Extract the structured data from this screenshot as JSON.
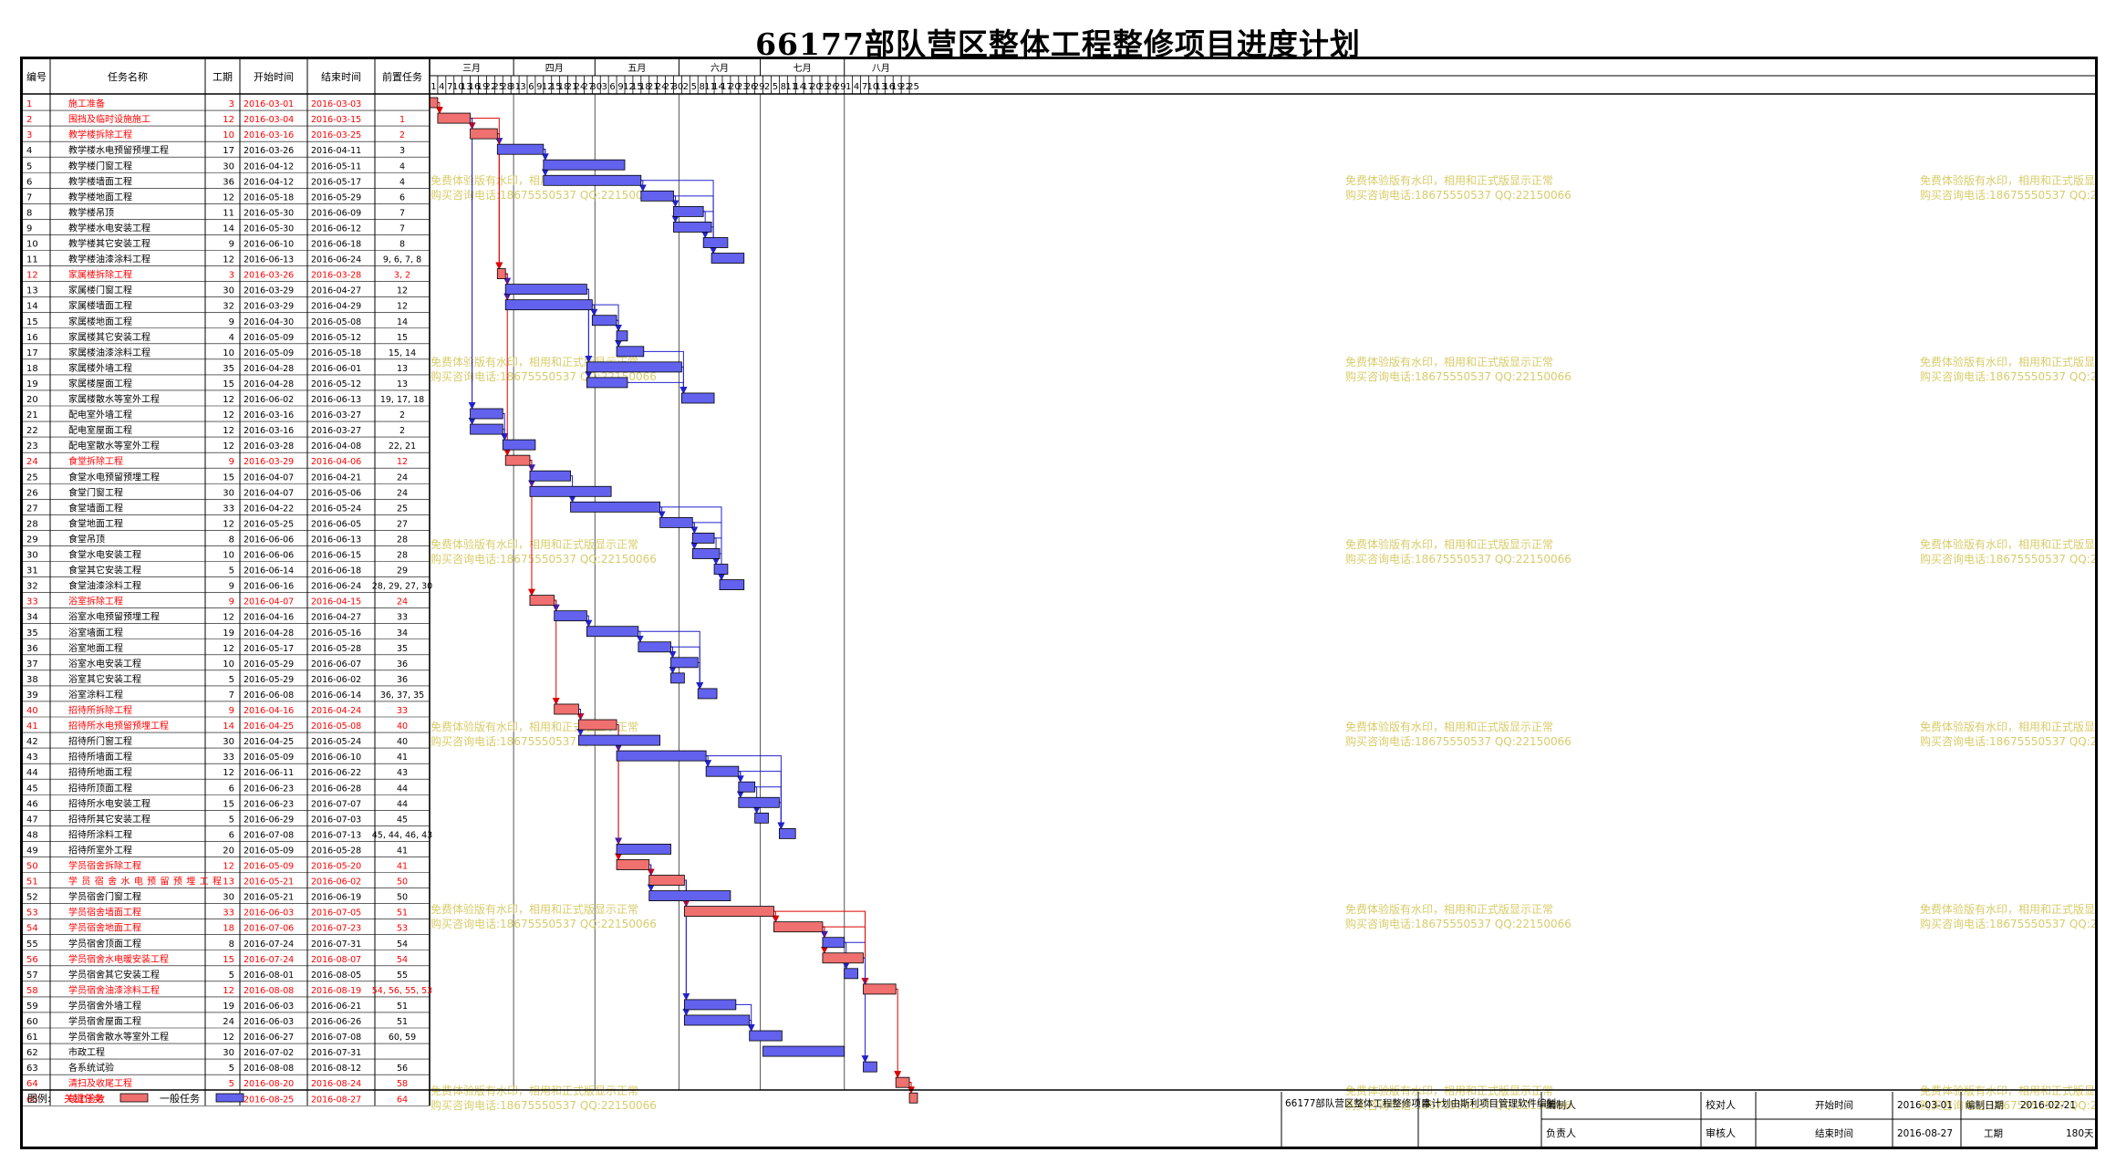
{
  "title": "66177部队营区整体工程整修项目进度计划",
  "colors": {
    "critical": "#f07070",
    "critical_text": "#ff0000",
    "normal": "#6262ee",
    "link_normal": "#2222cc",
    "link_critical": "#dd0000",
    "watermark": "#d8cc6a",
    "grid": "#000000"
  },
  "headers": {
    "id": "编号",
    "name": "任务名称",
    "duration": "工期",
    "start": "开始时间",
    "end": "结束时间",
    "pred": "前置任务"
  },
  "months": [
    {
      "label": "三月",
      "start": "2016-03-01"
    },
    {
      "label": "四月",
      "start": "2016-04-01"
    },
    {
      "label": "五月",
      "start": "2016-05-01"
    },
    {
      "label": "六月",
      "start": "2016-06-01"
    },
    {
      "label": "七月",
      "start": "2016-07-01"
    },
    {
      "label": "八月",
      "start": "2016-08-01"
    }
  ],
  "day_ticks": [
    "1",
    "4",
    "7",
    "10",
    "13",
    "16",
    "19",
    "22",
    "25",
    "28",
    "31",
    "3",
    "6",
    "9",
    "12",
    "15",
    "18",
    "21",
    "24",
    "27",
    "30",
    "3",
    "6",
    "9",
    "12",
    "15",
    "18",
    "21",
    "24",
    "27",
    "30",
    "2",
    "5",
    "8",
    "11",
    "14",
    "17",
    "20",
    "23",
    "26",
    "29",
    "2",
    "5",
    "8",
    "11",
    "14",
    "17",
    "20",
    "23",
    "26",
    "29",
    "1",
    "4",
    "7",
    "10",
    "13",
    "16",
    "19",
    "22",
    "25"
  ],
  "watermark": {
    "line1": "免费体验版有水印，相用和正式版显示正常",
    "line2": "购买咨询电话:18675550537 QQ:22150066"
  },
  "chart_data": {
    "type": "gantt",
    "title": "66177部队营区整体工程整修项目进度计划",
    "x_range": [
      "2016-03-01",
      "2016-08-27"
    ],
    "tasks": [
      {
        "id": "1",
        "name": "施工准备",
        "duration": "3",
        "start": "2016-03-01",
        "end": "2016-03-03",
        "pred": "",
        "critical": true
      },
      {
        "id": "2",
        "name": "围挡及临时设施施工",
        "duration": "12",
        "start": "2016-03-04",
        "end": "2016-03-15",
        "pred": "1",
        "critical": true
      },
      {
        "id": "3",
        "name": "教学楼拆除工程",
        "duration": "10",
        "start": "2016-03-16",
        "end": "2016-03-25",
        "pred": "2",
        "critical": true
      },
      {
        "id": "4",
        "name": "教学楼水电预留预埋工程",
        "duration": "17",
        "start": "2016-03-26",
        "end": "2016-04-11",
        "pred": "3",
        "critical": false
      },
      {
        "id": "5",
        "name": "教学楼门窗工程",
        "duration": "30",
        "start": "2016-04-12",
        "end": "2016-05-11",
        "pred": "4",
        "critical": false
      },
      {
        "id": "6",
        "name": "教学楼墙面工程",
        "duration": "36",
        "start": "2016-04-12",
        "end": "2016-05-17",
        "pred": "4",
        "critical": false
      },
      {
        "id": "7",
        "name": "教学楼地面工程",
        "duration": "12",
        "start": "2016-05-18",
        "end": "2016-05-29",
        "pred": "6",
        "critical": false
      },
      {
        "id": "8",
        "name": "教学楼吊顶",
        "duration": "11",
        "start": "2016-05-30",
        "end": "2016-06-09",
        "pred": "7",
        "critical": false
      },
      {
        "id": "9",
        "name": "教学楼水电安装工程",
        "duration": "14",
        "start": "2016-05-30",
        "end": "2016-06-12",
        "pred": "7",
        "critical": false
      },
      {
        "id": "10",
        "name": "教学楼其它安装工程",
        "duration": "9",
        "start": "2016-06-10",
        "end": "2016-06-18",
        "pred": "8",
        "critical": false
      },
      {
        "id": "11",
        "name": "教学楼油漆涂料工程",
        "duration": "12",
        "start": "2016-06-13",
        "end": "2016-06-24",
        "pred": "9, 6, 7, 8",
        "critical": false
      },
      {
        "id": "12",
        "name": "家属楼拆除工程",
        "duration": "3",
        "start": "2016-03-26",
        "end": "2016-03-28",
        "pred": "3, 2",
        "critical": true
      },
      {
        "id": "13",
        "name": "家属楼门窗工程",
        "duration": "30",
        "start": "2016-03-29",
        "end": "2016-04-27",
        "pred": "12",
        "critical": false
      },
      {
        "id": "14",
        "name": "家属楼墙面工程",
        "duration": "32",
        "start": "2016-03-29",
        "end": "2016-04-29",
        "pred": "12",
        "critical": false
      },
      {
        "id": "15",
        "name": "家属楼地面工程",
        "duration": "9",
        "start": "2016-04-30",
        "end": "2016-05-08",
        "pred": "14",
        "critical": false
      },
      {
        "id": "16",
        "name": "家属楼其它安装工程",
        "duration": "4",
        "start": "2016-05-09",
        "end": "2016-05-12",
        "pred": "15",
        "critical": false
      },
      {
        "id": "17",
        "name": "家属楼油漆涂料工程",
        "duration": "10",
        "start": "2016-05-09",
        "end": "2016-05-18",
        "pred": "15, 14",
        "critical": false
      },
      {
        "id": "18",
        "name": "家属楼外墙工程",
        "duration": "35",
        "start": "2016-04-28",
        "end": "2016-06-01",
        "pred": "13",
        "critical": false
      },
      {
        "id": "19",
        "name": "家属楼屋面工程",
        "duration": "15",
        "start": "2016-04-28",
        "end": "2016-05-12",
        "pred": "13",
        "critical": false
      },
      {
        "id": "20",
        "name": "家属楼散水等室外工程",
        "duration": "12",
        "start": "2016-06-02",
        "end": "2016-06-13",
        "pred": "19, 17, 18",
        "critical": false
      },
      {
        "id": "21",
        "name": "配电室外墙工程",
        "duration": "12",
        "start": "2016-03-16",
        "end": "2016-03-27",
        "pred": "2",
        "critical": false
      },
      {
        "id": "22",
        "name": "配电室屋面工程",
        "duration": "12",
        "start": "2016-03-16",
        "end": "2016-03-27",
        "pred": "2",
        "critical": false
      },
      {
        "id": "23",
        "name": "配电室散水等室外工程",
        "duration": "12",
        "start": "2016-03-28",
        "end": "2016-04-08",
        "pred": "22, 21",
        "critical": false
      },
      {
        "id": "24",
        "name": "食堂拆除工程",
        "duration": "9",
        "start": "2016-03-29",
        "end": "2016-04-06",
        "pred": "12",
        "critical": true
      },
      {
        "id": "25",
        "name": "食堂水电预留预埋工程",
        "duration": "15",
        "start": "2016-04-07",
        "end": "2016-04-21",
        "pred": "24",
        "critical": false
      },
      {
        "id": "26",
        "name": "食堂门窗工程",
        "duration": "30",
        "start": "2016-04-07",
        "end": "2016-05-06",
        "pred": "24",
        "critical": false
      },
      {
        "id": "27",
        "name": "食堂墙面工程",
        "duration": "33",
        "start": "2016-04-22",
        "end": "2016-05-24",
        "pred": "25",
        "critical": false
      },
      {
        "id": "28",
        "name": "食堂地面工程",
        "duration": "12",
        "start": "2016-05-25",
        "end": "2016-06-05",
        "pred": "27",
        "critical": false
      },
      {
        "id": "29",
        "name": "食堂吊顶",
        "duration": "8",
        "start": "2016-06-06",
        "end": "2016-06-13",
        "pred": "28",
        "critical": false
      },
      {
        "id": "30",
        "name": "食堂水电安装工程",
        "duration": "10",
        "start": "2016-06-06",
        "end": "2016-06-15",
        "pred": "28",
        "critical": false
      },
      {
        "id": "31",
        "name": "食堂其它安装工程",
        "duration": "5",
        "start": "2016-06-14",
        "end": "2016-06-18",
        "pred": "29",
        "critical": false
      },
      {
        "id": "32",
        "name": "食堂油漆涂料工程",
        "duration": "9",
        "start": "2016-06-16",
        "end": "2016-06-24",
        "pred": "28, 29, 27, 30",
        "critical": false
      },
      {
        "id": "33",
        "name": "浴室拆除工程",
        "duration": "9",
        "start": "2016-04-07",
        "end": "2016-04-15",
        "pred": "24",
        "critical": true
      },
      {
        "id": "34",
        "name": "浴室水电预留预埋工程",
        "duration": "12",
        "start": "2016-04-16",
        "end": "2016-04-27",
        "pred": "33",
        "critical": false
      },
      {
        "id": "35",
        "name": "浴室墙面工程",
        "duration": "19",
        "start": "2016-04-28",
        "end": "2016-05-16",
        "pred": "34",
        "critical": false
      },
      {
        "id": "36",
        "name": "浴室地面工程",
        "duration": "12",
        "start": "2016-05-17",
        "end": "2016-05-28",
        "pred": "35",
        "critical": false
      },
      {
        "id": "37",
        "name": "浴室水电安装工程",
        "duration": "10",
        "start": "2016-05-29",
        "end": "2016-06-07",
        "pred": "36",
        "critical": false
      },
      {
        "id": "38",
        "name": "浴室其它安装工程",
        "duration": "5",
        "start": "2016-05-29",
        "end": "2016-06-02",
        "pred": "36",
        "critical": false
      },
      {
        "id": "39",
        "name": "浴室涂料工程",
        "duration": "7",
        "start": "2016-06-08",
        "end": "2016-06-14",
        "pred": "36, 37, 35",
        "critical": false
      },
      {
        "id": "40",
        "name": "招待所拆除工程",
        "duration": "9",
        "start": "2016-04-16",
        "end": "2016-04-24",
        "pred": "33",
        "critical": true
      },
      {
        "id": "41",
        "name": "招待所水电预留预埋工程",
        "duration": "14",
        "start": "2016-04-25",
        "end": "2016-05-08",
        "pred": "40",
        "critical": true
      },
      {
        "id": "42",
        "name": "招待所门窗工程",
        "duration": "30",
        "start": "2016-04-25",
        "end": "2016-05-24",
        "pred": "40",
        "critical": false
      },
      {
        "id": "43",
        "name": "招待所墙面工程",
        "duration": "33",
        "start": "2016-05-09",
        "end": "2016-06-10",
        "pred": "41",
        "critical": false
      },
      {
        "id": "44",
        "name": "招待所地面工程",
        "duration": "12",
        "start": "2016-06-11",
        "end": "2016-06-22",
        "pred": "43",
        "critical": false
      },
      {
        "id": "45",
        "name": "招待所顶面工程",
        "duration": "6",
        "start": "2016-06-23",
        "end": "2016-06-28",
        "pred": "44",
        "critical": false
      },
      {
        "id": "46",
        "name": "招待所水电安装工程",
        "duration": "15",
        "start": "2016-06-23",
        "end": "2016-07-07",
        "pred": "44",
        "critical": false
      },
      {
        "id": "47",
        "name": "招待所其它安装工程",
        "duration": "5",
        "start": "2016-06-29",
        "end": "2016-07-03",
        "pred": "45",
        "critical": false
      },
      {
        "id": "48",
        "name": "招待所涂料工程",
        "duration": "6",
        "start": "2016-07-08",
        "end": "2016-07-13",
        "pred": "45, 44, 46, 43",
        "critical": false
      },
      {
        "id": "49",
        "name": "招待所室外工程",
        "duration": "20",
        "start": "2016-05-09",
        "end": "2016-05-28",
        "pred": "41",
        "critical": false
      },
      {
        "id": "50",
        "name": "学员宿舍拆除工程",
        "duration": "12",
        "start": "2016-05-09",
        "end": "2016-05-20",
        "pred": "41",
        "critical": true
      },
      {
        "id": "51",
        "name": "学员宿舍水电预留预埋工程",
        "duration": "13",
        "start": "2016-05-21",
        "end": "2016-06-02",
        "pred": "50",
        "critical": true
      },
      {
        "id": "52",
        "name": "学员宿舍门窗工程",
        "duration": "30",
        "start": "2016-05-21",
        "end": "2016-06-19",
        "pred": "50",
        "critical": false
      },
      {
        "id": "53",
        "name": "学员宿舍墙面工程",
        "duration": "33",
        "start": "2016-06-03",
        "end": "2016-07-05",
        "pred": "51",
        "critical": true
      },
      {
        "id": "54",
        "name": "学员宿舍地面工程",
        "duration": "18",
        "start": "2016-07-06",
        "end": "2016-07-23",
        "pred": "53",
        "critical": true
      },
      {
        "id": "55",
        "name": "学员宿舍顶面工程",
        "duration": "8",
        "start": "2016-07-24",
        "end": "2016-07-31",
        "pred": "54",
        "critical": false
      },
      {
        "id": "56",
        "name": "学员宿舍水电暖安装工程",
        "duration": "15",
        "start": "2016-07-24",
        "end": "2016-08-07",
        "pred": "54",
        "critical": true
      },
      {
        "id": "57",
        "name": "学员宿舍其它安装工程",
        "duration": "5",
        "start": "2016-08-01",
        "end": "2016-08-05",
        "pred": "55",
        "critical": false
      },
      {
        "id": "58",
        "name": "学员宿舍油漆涂料工程",
        "duration": "12",
        "start": "2016-08-08",
        "end": "2016-08-19",
        "pred": "54, 56, 55, 53",
        "critical": true
      },
      {
        "id": "59",
        "name": "学员宿舍外墙工程",
        "duration": "19",
        "start": "2016-06-03",
        "end": "2016-06-21",
        "pred": "51",
        "critical": false
      },
      {
        "id": "60",
        "name": "学员宿舍屋面工程",
        "duration": "24",
        "start": "2016-06-03",
        "end": "2016-06-26",
        "pred": "51",
        "critical": false
      },
      {
        "id": "61",
        "name": "学员宿舍散水等室外工程",
        "duration": "12",
        "start": "2016-06-27",
        "end": "2016-07-08",
        "pred": "60, 59",
        "critical": false
      },
      {
        "id": "62",
        "name": "市政工程",
        "duration": "30",
        "start": "2016-07-02",
        "end": "2016-07-31",
        "pred": "",
        "critical": false
      },
      {
        "id": "63",
        "name": "各系统试验",
        "duration": "5",
        "start": "2016-08-08",
        "end": "2016-08-12",
        "pred": "56",
        "critical": false
      },
      {
        "id": "64",
        "name": "清扫及收尾工程",
        "duration": "5",
        "start": "2016-08-20",
        "end": "2016-08-24",
        "pred": "58",
        "critical": true
      },
      {
        "id": "65",
        "name": "竣工验收",
        "duration": "3",
        "start": "2016-08-25",
        "end": "2016-08-27",
        "pred": "64",
        "critical": true
      }
    ]
  },
  "legend": {
    "label": "图例:",
    "critical": "关键任务",
    "normal": "一般任务"
  },
  "footer": {
    "project_name": "66177部队营区整体工程整修项目",
    "software_note": "本计划由斯利项目管理软件编制",
    "compiler": "编制人",
    "proofreader": "校对人",
    "start_label": "开始时间",
    "start_value": "2016-03-01",
    "made_date_label": "编制日期",
    "made_date_value": "2016-02-21",
    "owner": "负责人",
    "reviewer": "审核人",
    "end_label": "结束时间",
    "end_value": "2016-08-27",
    "duration_label": "工期",
    "duration_value": "180天"
  }
}
